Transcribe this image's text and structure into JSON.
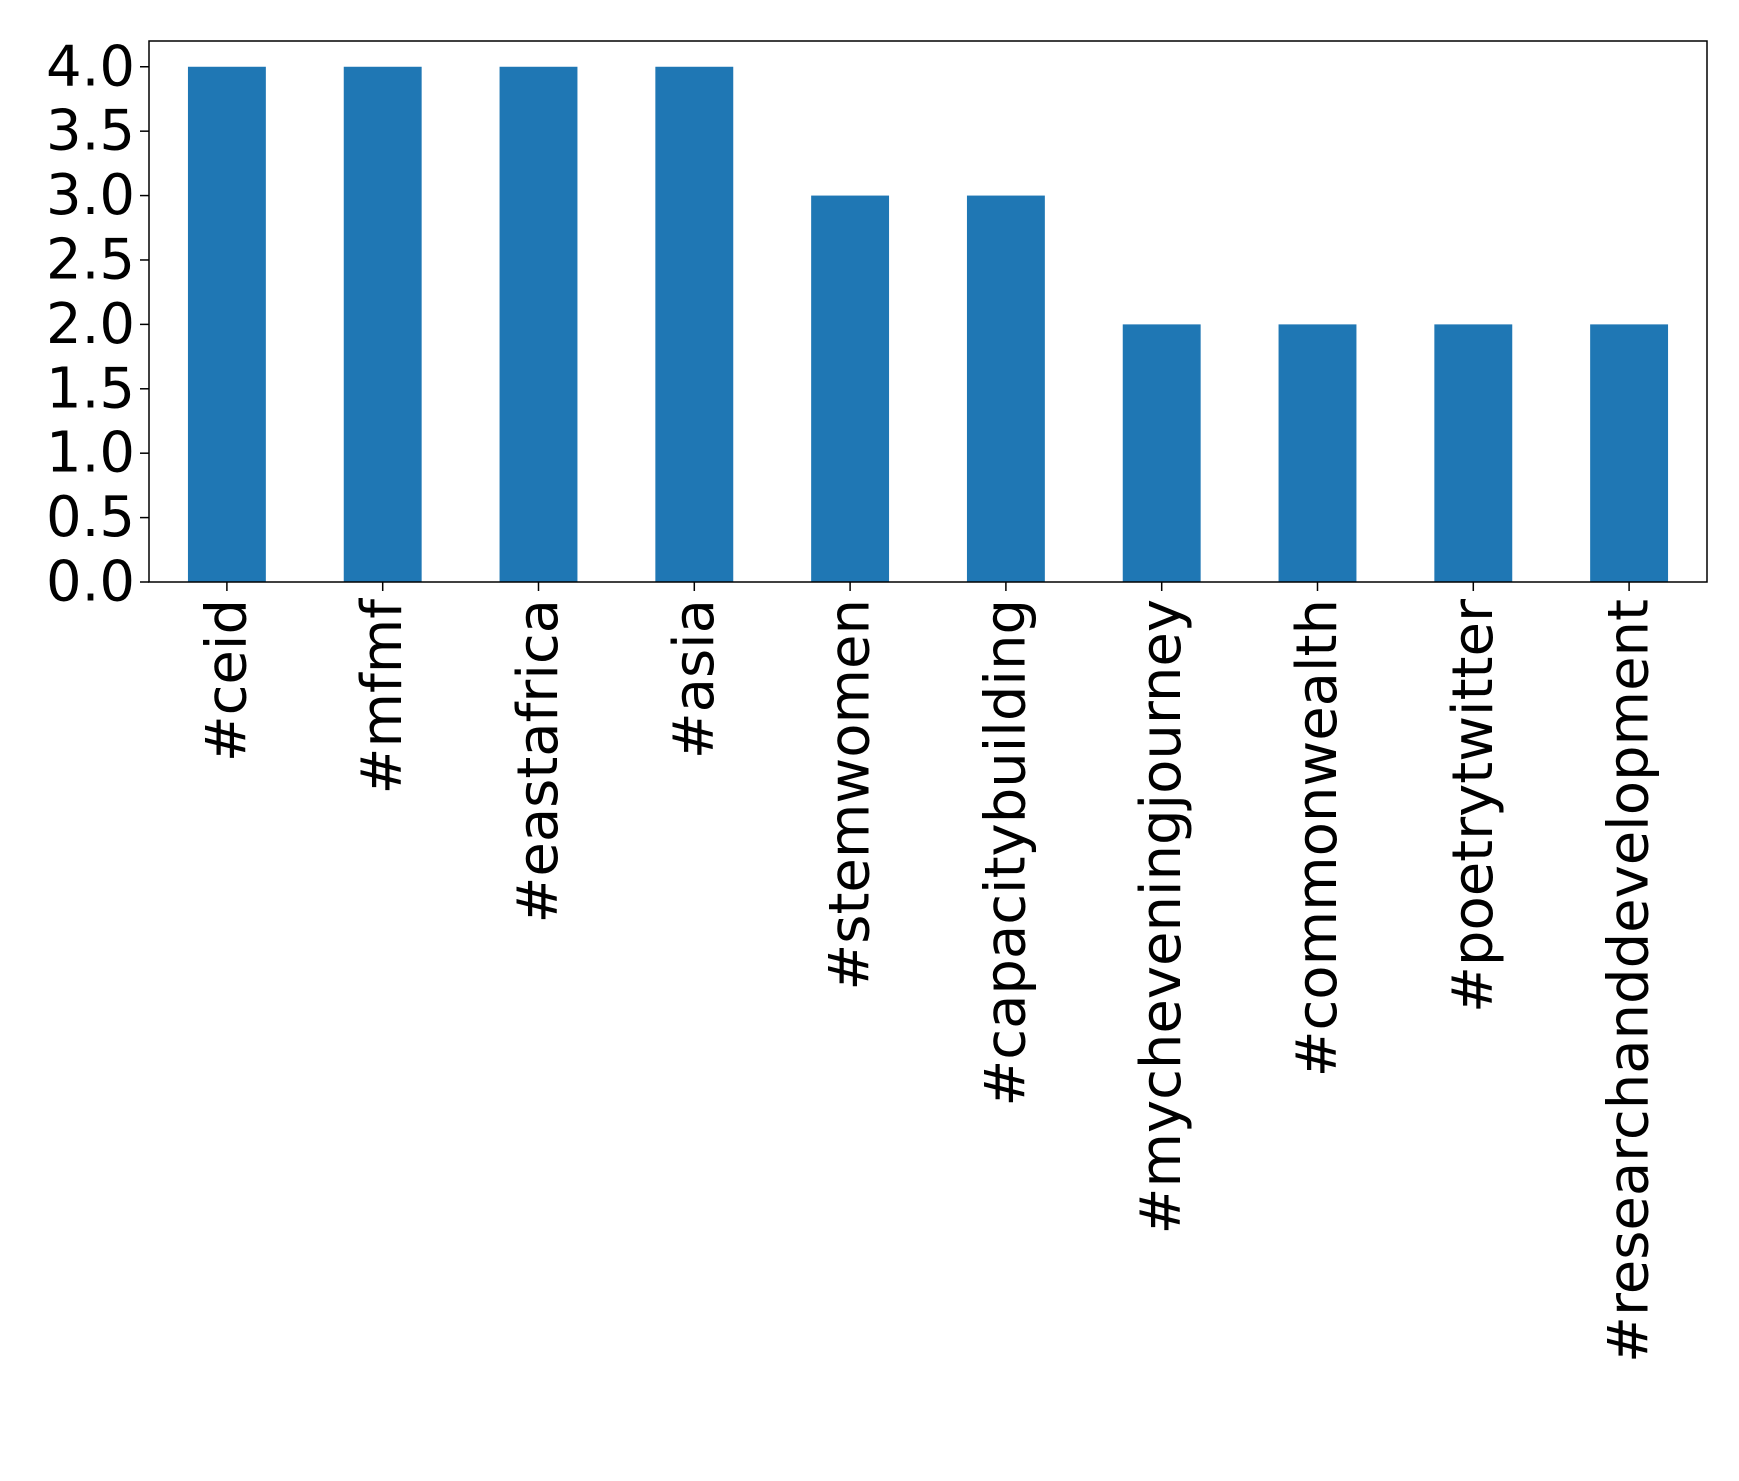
{
  "chart_data": {
    "type": "bar",
    "title": "",
    "xlabel": "",
    "ylabel": "",
    "categories": [
      "#ceid",
      "#mfmf",
      "#eastafrica",
      "#asia",
      "#stemwomen",
      "#capacitybuilding",
      "#mycheveningjourney",
      "#commonwealth",
      "#poetrytwitter",
      "#researchanddevelopment"
    ],
    "values": [
      4,
      4,
      4,
      4,
      3,
      3,
      2,
      2,
      2,
      2
    ],
    "ylim": [
      0,
      4.2
    ],
    "yticks": [
      0.0,
      0.5,
      1.0,
      1.5,
      2.0,
      2.5,
      3.0,
      3.5,
      4.0
    ],
    "ytick_labels": [
      "0.0",
      "0.5",
      "1.0",
      "1.5",
      "2.0",
      "2.5",
      "3.0",
      "3.5",
      "4.0"
    ],
    "grid": false,
    "legend": "none",
    "bar_color": "#1f77b4"
  }
}
